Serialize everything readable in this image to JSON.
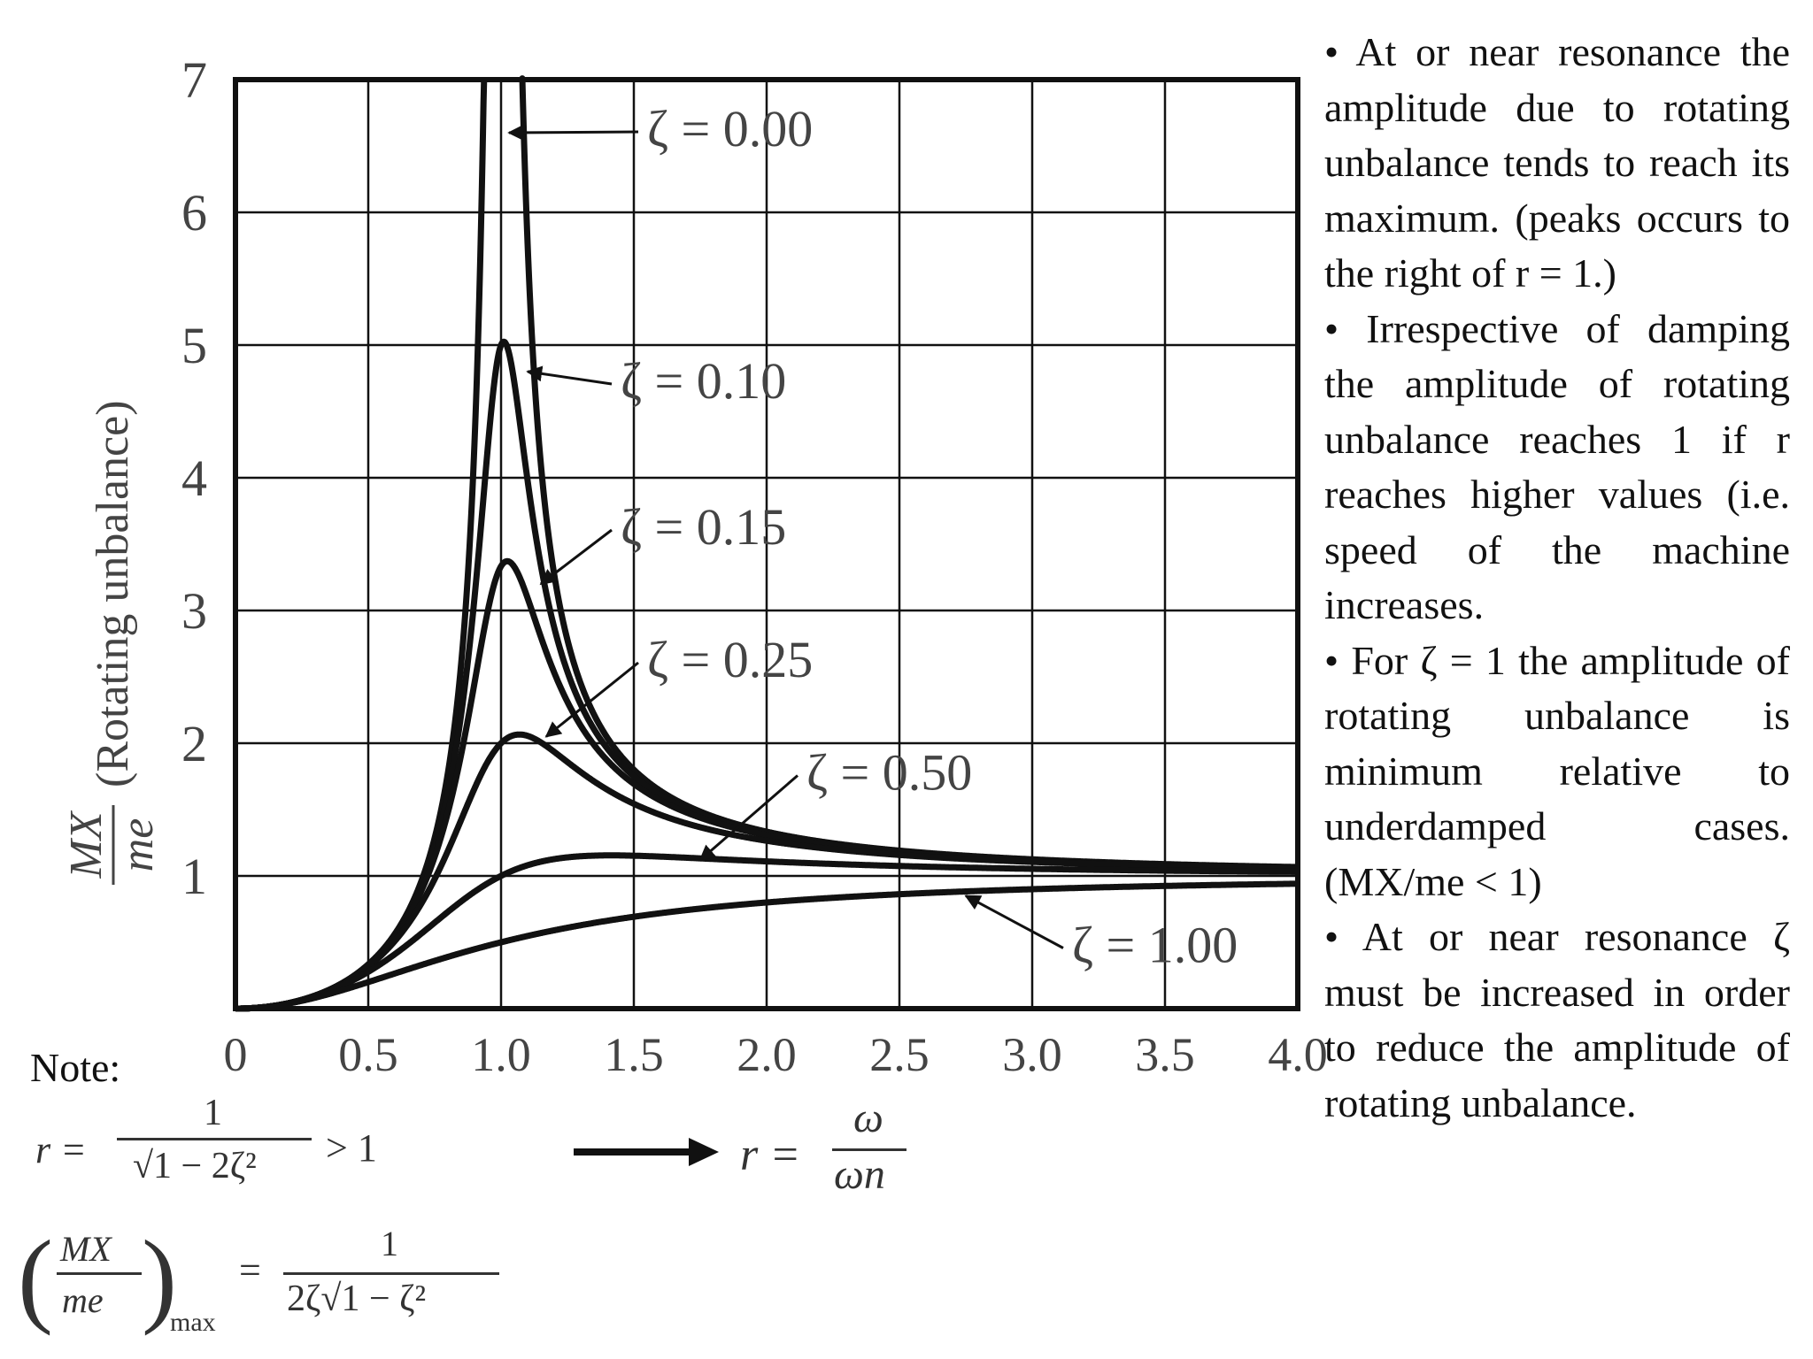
{
  "chart_data": {
    "type": "line",
    "title": "",
    "xlabel": "r = ω/ωn",
    "ylabel": "MX/me (Rotating unbalance)",
    "ylabel_fraction": {
      "num": "MX",
      "den": "me"
    },
    "ylabel_text": "(Rotating unbalance)",
    "xlim": [
      0,
      4.0
    ],
    "ylim": [
      0,
      7
    ],
    "grid": true,
    "x_ticks": [
      "0",
      "0.5",
      "1.0",
      "1.5",
      "2.0",
      "2.5",
      "3.0",
      "3.5",
      "4.0"
    ],
    "y_ticks": [
      "1",
      "2",
      "3",
      "4",
      "5",
      "6",
      "7"
    ],
    "x_tick_values": [
      0,
      0.5,
      1.0,
      1.5,
      2.0,
      2.5,
      3.0,
      3.5,
      4.0
    ],
    "y_tick_values": [
      1,
      2,
      3,
      4,
      5,
      6,
      7
    ],
    "series": [
      {
        "name": "ζ = 0.00",
        "zeta": 0.0
      },
      {
        "name": "ζ = 0.10",
        "zeta": 0.1
      },
      {
        "name": "ζ = 0.15",
        "zeta": 0.15
      },
      {
        "name": "ζ = 0.25",
        "zeta": 0.25
      },
      {
        "name": "ζ = 0.50",
        "zeta": 0.5
      },
      {
        "name": "ζ = 1.00",
        "zeta": 1.0
      }
    ],
    "annotations": [
      {
        "text": "ζ = 0.00",
        "anchor": [
          1.03,
          6.6
        ],
        "at": [
          1.55,
          6.5
        ]
      },
      {
        "text": "ζ = 0.10",
        "anchor": [
          1.1,
          4.8
        ],
        "at": [
          1.45,
          4.6
        ]
      },
      {
        "text": "ζ = 0.15",
        "anchor": [
          1.15,
          3.2
        ],
        "at": [
          1.45,
          3.5
        ]
      },
      {
        "text": "ζ = 0.25",
        "anchor": [
          1.17,
          2.05
        ],
        "at": [
          1.55,
          2.5
        ]
      },
      {
        "text": "ζ = 0.50",
        "anchor": [
          1.75,
          1.12
        ],
        "at": [
          2.15,
          1.65
        ]
      },
      {
        "text": "ζ = 1.00",
        "anchor": [
          2.75,
          0.85
        ],
        "at": [
          3.15,
          0.35
        ]
      }
    ]
  },
  "notes": {
    "label": "Note:",
    "bullets": [
      "• At or near resonance the amplitude due to rotating unbalance tends to reach its maximum. (peaks occurs to the right of r = 1.)",
      "• Irrespective of damping the amplitude of rotating unbalance reaches 1 if r reaches higher values (i.e. speed of the machine increases.",
      "• For ζ = 1 the amplitude of rotating unbalance is minimum relative to underdamped cases. (MX/me < 1)",
      "• At or near resonance ζ must be increased in order to reduce the amplitude of rotating unbalance."
    ]
  },
  "formulas": {
    "r_peak": {
      "lhs": "r =",
      "num": "1",
      "den": "√1 − 2ζ²",
      "rhs": "> 1"
    },
    "r_def": {
      "lhs": "r =",
      "num": "ω",
      "den": "ωn"
    },
    "max": {
      "lhs_num": "MX",
      "lhs_den": "me",
      "sub": "max",
      "eq": "=",
      "num": "1",
      "den": "2ζ√1 − ζ²"
    }
  }
}
